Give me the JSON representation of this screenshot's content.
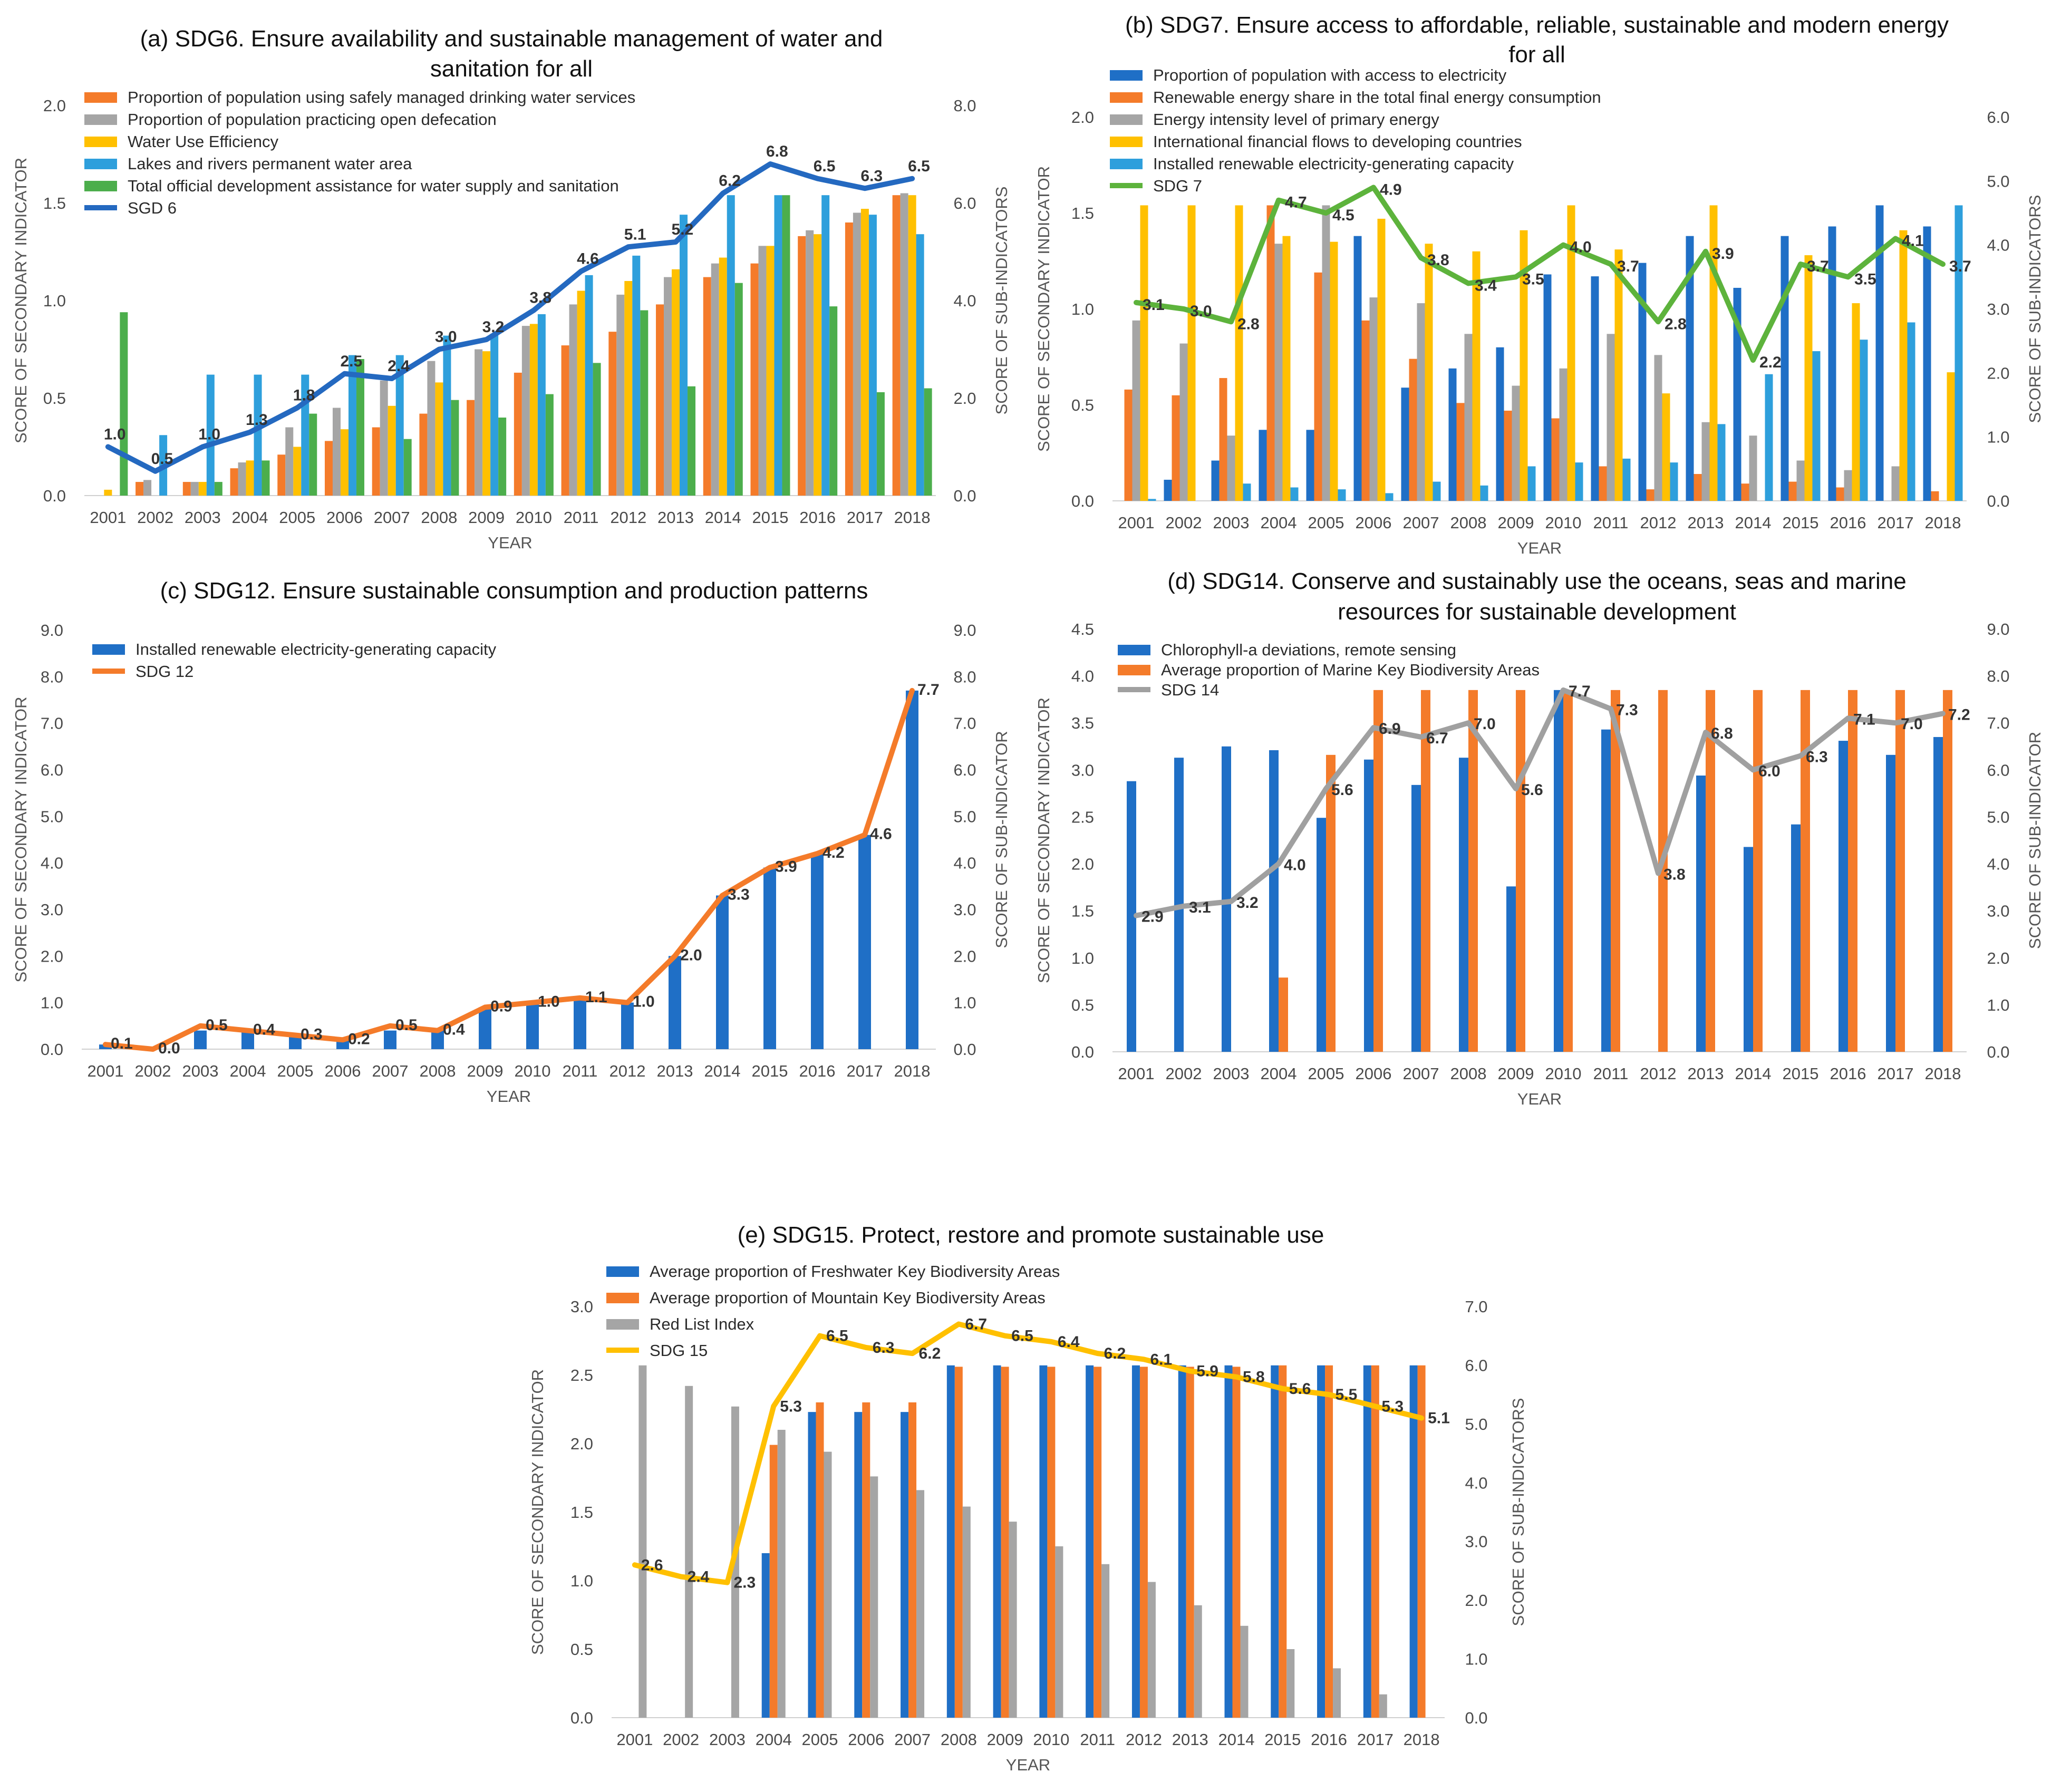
{
  "colors": {
    "blue": "#1f6fc6",
    "orange": "#f47b2a",
    "gray": "#a5a5a5",
    "yellow": "#ffc000",
    "lightblue": "#2e9fdc",
    "green": "#4cae4c",
    "sdg6_line": "#2469c0",
    "sdg7_line": "#5db33c",
    "sdg12_line": "#f47b2a",
    "sdg14_line": "#a0a0a0",
    "sdg15_line": "#ffc000"
  },
  "chart_data": [
    {
      "id": "a",
      "type": "bar",
      "title": "(a) SDG6. Ensure availability and sustainable management of water and sanitation for all",
      "title_lines": [
        "(a) SDG6. Ensure availability and sustainable management of water and",
        "sanitation for all"
      ],
      "xlabel": "YEAR",
      "ylabel": "SCORE OF SECONDARY INDICATOR",
      "y2label": "SCORE OF SUB-INDICATORS",
      "categories": [
        "2001",
        "2002",
        "2003",
        "2004",
        "2005",
        "2006",
        "2007",
        "2008",
        "2009",
        "2010",
        "2011",
        "2012",
        "2013",
        "2014",
        "2015",
        "2016",
        "2017",
        "2018"
      ],
      "ylim": [
        0,
        2.0
      ],
      "yticks": [
        0.0,
        0.5,
        1.0,
        1.5,
        2.0
      ],
      "ytick_labels": [
        "0.0",
        "0.5",
        "1.0",
        "1.5",
        "2.0"
      ],
      "y2lim": [
        0,
        8.0
      ],
      "y2ticks": [
        0.0,
        2.0,
        4.0,
        6.0,
        8.0
      ],
      "y2tick_labels": [
        "0.0",
        "2.0",
        "4.0",
        "6.0",
        "8.0"
      ],
      "series": [
        {
          "name": "Proportion of population using safely managed drinking water services",
          "color": "orange",
          "values": [
            0,
            0.07,
            0.07,
            0.14,
            0.21,
            0.28,
            0.35,
            0.42,
            0.49,
            0.63,
            0.77,
            0.84,
            0.98,
            1.12,
            1.19,
            1.33,
            1.4,
            1.54
          ]
        },
        {
          "name": "Proportion of population practicing open defecation",
          "color": "gray",
          "values": [
            0,
            0.08,
            0.07,
            0.17,
            0.35,
            0.45,
            0.59,
            0.69,
            0.75,
            0.87,
            0.98,
            1.03,
            1.12,
            1.19,
            1.28,
            1.36,
            1.45,
            1.55
          ]
        },
        {
          "name": "Water Use Efficiency",
          "color": "yellow",
          "values": [
            0.03,
            0,
            0.07,
            0.18,
            0.25,
            0.34,
            0.46,
            0.58,
            0.74,
            0.88,
            1.05,
            1.1,
            1.16,
            1.22,
            1.28,
            1.34,
            1.47,
            1.54
          ]
        },
        {
          "name": "Lakes and rivers permanent water area",
          "color": "lightblue",
          "values": [
            0,
            0.31,
            0.62,
            0.62,
            0.62,
            0.72,
            0.72,
            0.82,
            0.83,
            0.93,
            1.13,
            1.23,
            1.44,
            1.54,
            1.54,
            1.54,
            1.44,
            1.34
          ]
        },
        {
          "name": "Total official development assistance for water supply and sanitation",
          "color": "green",
          "values": [
            0.94,
            0,
            0.07,
            0.18,
            0.42,
            0.7,
            0.29,
            0.49,
            0.4,
            0.52,
            0.68,
            0.95,
            0.56,
            1.09,
            1.54,
            0.97,
            0.53,
            0.55
          ]
        }
      ],
      "line": {
        "name": "SGD 6",
        "color": "sdg6_line",
        "values": [
          1.0,
          0.5,
          1.0,
          1.3,
          1.8,
          2.5,
          2.4,
          3.0,
          3.2,
          3.8,
          4.6,
          5.1,
          5.2,
          6.2,
          6.8,
          6.5,
          6.3,
          6.5
        ],
        "labels": [
          "1.0",
          "0.5",
          "1.0",
          "1.3",
          "1.8",
          "2.5",
          "2.4",
          "3.0",
          "3.2",
          "3.8",
          "4.6",
          "5.1",
          "5.2",
          "6.2",
          "6.8",
          "6.5",
          "6.3",
          "6.5"
        ]
      }
    },
    {
      "id": "b",
      "type": "bar",
      "title": "(b) SDG7. Ensure access to affordable, reliable, sustainable and modern energy for all",
      "title_lines": [
        "(b) SDG7. Ensure access to affordable, reliable, sustainable and modern energy",
        "for all"
      ],
      "xlabel": "YEAR",
      "ylabel": "SCORE OF SECONDARY INDICATOR",
      "y2label": "SCORE OF SUB-INDICATORS",
      "categories": [
        "2001",
        "2002",
        "2003",
        "2004",
        "2005",
        "2006",
        "2007",
        "2008",
        "2009",
        "2010",
        "2011",
        "2012",
        "2013",
        "2014",
        "2015",
        "2016",
        "2017",
        "2018"
      ],
      "ylim": [
        0,
        2.0
      ],
      "yticks": [
        0.0,
        0.5,
        1.0,
        1.5,
        2.0
      ],
      "ytick_labels": [
        "0.0",
        "0.5",
        "1.0",
        "1.5",
        "2.0"
      ],
      "y2lim": [
        0,
        6.0
      ],
      "y2ticks": [
        0.0,
        1.0,
        2.0,
        3.0,
        4.0,
        5.0,
        6.0
      ],
      "y2tick_labels": [
        "0.0",
        "1.0",
        "2.0",
        "3.0",
        "4.0",
        "5.0",
        "6.0"
      ],
      "series": [
        {
          "name": "Proportion of population with access to electricity",
          "color": "blue",
          "values": [
            0,
            0.11,
            0.21,
            0.37,
            0.37,
            1.38,
            0.59,
            0.69,
            0.8,
            1.18,
            1.17,
            1.24,
            1.38,
            1.11,
            1.38,
            1.43,
            1.54,
            1.43
          ]
        },
        {
          "name": "Renewable energy share in the total final energy consumption",
          "color": "orange",
          "values": [
            0.58,
            0.55,
            0.64,
            1.54,
            1.19,
            0.94,
            0.74,
            0.51,
            0.47,
            0.43,
            0.18,
            0.06,
            0.14,
            0.09,
            0.1,
            0.07,
            0,
            0.05
          ]
        },
        {
          "name": "Energy intensity level of primary energy",
          "color": "gray",
          "values": [
            0.94,
            0.82,
            0.34,
            1.34,
            1.54,
            1.06,
            1.03,
            0.87,
            0.6,
            0.69,
            0.87,
            0.76,
            0.41,
            0.34,
            0.21,
            0.16,
            0.18,
            0
          ]
        },
        {
          "name": "International financial flows to developing countries",
          "color": "yellow",
          "values": [
            1.54,
            1.54,
            1.54,
            1.38,
            1.35,
            1.47,
            1.34,
            1.3,
            1.41,
            1.54,
            1.31,
            0.56,
            1.54,
            0,
            1.28,
            1.03,
            1.41,
            0.67
          ]
        },
        {
          "name": "Installed renewable electricity-generating capacity",
          "color": "lightblue",
          "values": [
            0.01,
            0,
            0.09,
            0.07,
            0.06,
            0.04,
            0.1,
            0.08,
            0.18,
            0.2,
            0.22,
            0.2,
            0.4,
            0.66,
            0.78,
            0.84,
            0.93,
            1.54
          ]
        }
      ],
      "line": {
        "name": "SDG 7",
        "color": "sdg7_line",
        "values": [
          3.1,
          3.0,
          2.8,
          4.7,
          4.5,
          4.9,
          3.8,
          3.4,
          3.5,
          4.0,
          3.7,
          2.8,
          3.9,
          2.2,
          3.7,
          3.5,
          4.1,
          3.7
        ],
        "labels": [
          "3.1",
          "3.0",
          "2.8",
          "4.7",
          "4.5",
          "4.9",
          "3.8",
          "3.4",
          "3.5",
          "4.0",
          "3.7",
          "2.8",
          "3.9",
          "2.2",
          "3.7",
          "3.5",
          "4.1",
          "3.7"
        ]
      }
    },
    {
      "id": "c",
      "type": "bar",
      "title": "(c) SDG12. Ensure sustainable consumption and production patterns",
      "title_lines": [
        "(c) SDG12. Ensure sustainable consumption and production patterns"
      ],
      "xlabel": "YEAR",
      "ylabel": "SCORE OF SECONDARY INDICATOR",
      "y2label": "SCORE OF SUB-INDICATOR",
      "categories": [
        "2001",
        "2002",
        "2003",
        "2004",
        "2005",
        "2006",
        "2007",
        "2008",
        "2009",
        "2010",
        "2011",
        "2012",
        "2013",
        "2014",
        "2015",
        "2016",
        "2017",
        "2018"
      ],
      "ylim": [
        0,
        9.0
      ],
      "yticks": [
        0.0,
        1.0,
        2.0,
        3.0,
        4.0,
        5.0,
        6.0,
        7.0,
        8.0,
        9.0
      ],
      "ytick_labels": [
        "0.0",
        "1.0",
        "2.0",
        "3.0",
        "4.0",
        "5.0",
        "6.0",
        "7.0",
        "8.0",
        "9.0"
      ],
      "y2lim": [
        0,
        9.0
      ],
      "y2ticks": [
        0.0,
        1.0,
        2.0,
        3.0,
        4.0,
        5.0,
        6.0,
        7.0,
        8.0,
        9.0
      ],
      "y2tick_labels": [
        "0.0",
        "1.0",
        "2.0",
        "3.0",
        "4.0",
        "5.0",
        "6.0",
        "7.0",
        "8.0",
        "9.0"
      ],
      "series": [
        {
          "name": "Installed renewable electricity-generating capacity",
          "color": "blue",
          "values": [
            0.1,
            0.0,
            0.4,
            0.4,
            0.3,
            0.2,
            0.4,
            0.4,
            0.9,
            1.0,
            1.1,
            1.0,
            2.0,
            3.3,
            3.9,
            4.2,
            4.6,
            7.7
          ]
        }
      ],
      "line": {
        "name": "SDG 12",
        "color": "sdg12_line",
        "values": [
          0.1,
          0.0,
          0.5,
          0.4,
          0.3,
          0.2,
          0.5,
          0.4,
          0.9,
          1.0,
          1.1,
          1.0,
          2.0,
          3.3,
          3.9,
          4.2,
          4.6,
          7.7
        ],
        "labels": [
          "0.1",
          "0.0",
          "0.5",
          "0.4",
          "0.3",
          "0.2",
          "0.5",
          "0.4",
          "0.9",
          "1.0",
          "1.1",
          "1.0",
          "2.0",
          "3.3",
          "3.9",
          "4.2",
          "4.6",
          "7.7"
        ],
        "display_labels": [
          "0.1",
          "0.0",
          "0.5",
          "0.4",
          "0.3",
          "0.2",
          "0.5",
          "0.4",
          "0.9",
          "1.0",
          "1.1",
          "1.0",
          "2.0",
          "3.3",
          "3.9",
          "4.2",
          "4.6",
          "7.7"
        ]
      }
    },
    {
      "id": "d",
      "type": "bar",
      "title": "(d) SDG14. Conserve and sustainably use the oceans, seas and marine resources for sustainable development",
      "title_lines": [
        "(d) SDG14. Conserve and sustainably use the oceans, seas and marine",
        "resources for sustainable development"
      ],
      "xlabel": "YEAR",
      "ylabel": "SCORE OF SECONDARY INDICATOR",
      "y2label": "SCORE OF SUB-INDICATOR",
      "categories": [
        "2001",
        "2002",
        "2003",
        "2004",
        "2005",
        "2006",
        "2007",
        "2008",
        "2009",
        "2010",
        "2011",
        "2012",
        "2013",
        "2014",
        "2015",
        "2016",
        "2017",
        "2018"
      ],
      "ylim": [
        0,
        4.5
      ],
      "yticks": [
        0.0,
        0.5,
        1.0,
        1.5,
        2.0,
        2.5,
        3.0,
        3.5,
        4.0,
        4.5
      ],
      "ytick_labels": [
        "0.0",
        "0.5",
        "1.0",
        "1.5",
        "2.0",
        "2.5",
        "3.0",
        "3.5",
        "4.0",
        "4.5"
      ],
      "y2lim": [
        0,
        9.0
      ],
      "y2ticks": [
        0.0,
        1.0,
        2.0,
        3.0,
        4.0,
        5.0,
        6.0,
        7.0,
        8.0,
        9.0
      ],
      "y2tick_labels": [
        "0.0",
        "1.0",
        "2.0",
        "3.0",
        "4.0",
        "5.0",
        "6.0",
        "7.0",
        "8.0",
        "9.0"
      ],
      "series": [
        {
          "name": "Chlorophyll-a deviations, remote sensing",
          "color": "blue",
          "values": [
            2.88,
            3.13,
            3.25,
            3.21,
            2.49,
            3.11,
            2.84,
            3.13,
            1.76,
            3.85,
            3.43,
            0,
            2.94,
            2.18,
            2.42,
            3.31,
            3.16,
            3.35
          ]
        },
        {
          "name": "Average proportion of Marine Key Biodiversity Areas",
          "color": "orange",
          "values": [
            0,
            0,
            0,
            0.79,
            3.16,
            3.85,
            3.85,
            3.85,
            3.85,
            3.85,
            3.85,
            3.85,
            3.85,
            3.85,
            3.85,
            3.85,
            3.85,
            3.85
          ]
        }
      ],
      "line": {
        "name": "SDG 14",
        "color": "sdg14_line",
        "values": [
          2.9,
          3.1,
          3.2,
          4.0,
          5.6,
          6.9,
          6.7,
          7.0,
          5.6,
          7.7,
          7.3,
          3.8,
          6.8,
          6.0,
          6.3,
          7.1,
          7.0,
          7.2
        ],
        "labels": [
          "2.9",
          "3.1",
          "3.2",
          "4.0",
          "5.6",
          "6.9",
          "6.7",
          "7.0",
          "5.6",
          "7.7",
          "7.3",
          "3.8",
          "6.8",
          "6.0",
          "6.3",
          "7.1",
          "7.0",
          "7.2"
        ]
      }
    },
    {
      "id": "e",
      "type": "bar",
      "title": "(e) SDG15. Protect, restore and promote sustainable use",
      "title_lines": [
        "(e) SDG15. Protect, restore and promote sustainable use"
      ],
      "xlabel": "YEAR",
      "ylabel": "SCORE OF SECONDARY INDICATOR",
      "y2label": "SCORE OF SUB-INDICATORS",
      "categories": [
        "2001",
        "2002",
        "2003",
        "2004",
        "2005",
        "2006",
        "2007",
        "2008",
        "2009",
        "2010",
        "2011",
        "2012",
        "2013",
        "2014",
        "2015",
        "2016",
        "2017",
        "2018"
      ],
      "ylim": [
        0,
        3.0
      ],
      "yticks": [
        0.0,
        0.5,
        1.0,
        1.5,
        2.0,
        2.5,
        3.0
      ],
      "ytick_labels": [
        "0.0",
        "0.5",
        "1.0",
        "1.5",
        "2.0",
        "2.5",
        "3.0"
      ],
      "y2lim": [
        0,
        7.0
      ],
      "y2ticks": [
        0.0,
        1.0,
        2.0,
        3.0,
        4.0,
        5.0,
        6.0,
        7.0
      ],
      "y2tick_labels": [
        "0.0",
        "1.0",
        "2.0",
        "3.0",
        "4.0",
        "5.0",
        "6.0",
        "7.0"
      ],
      "series": [
        {
          "name": "Average proportion of Freshwater Key Biodiversity Areas",
          "color": "blue",
          "values": [
            0,
            0,
            0,
            1.2,
            2.23,
            2.23,
            2.23,
            2.57,
            2.57,
            2.57,
            2.57,
            2.57,
            2.57,
            2.57,
            2.57,
            2.57,
            2.57,
            2.57
          ]
        },
        {
          "name": "Average proportion of Mountain Key Biodiversity Areas",
          "color": "orange",
          "values": [
            0,
            0,
            0,
            1.99,
            2.3,
            2.3,
            2.3,
            2.56,
            2.56,
            2.56,
            2.56,
            2.56,
            2.56,
            2.56,
            2.57,
            2.57,
            2.57,
            2.57
          ]
        },
        {
          "name": "Red List Index",
          "color": "gray",
          "values": [
            2.57,
            2.42,
            2.27,
            2.1,
            1.94,
            1.76,
            1.66,
            1.54,
            1.43,
            1.25,
            1.12,
            0.99,
            0.82,
            0.67,
            0.5,
            0.36,
            0.17,
            0
          ]
        }
      ],
      "line": {
        "name": "SDG 15",
        "color": "sdg15_line",
        "values": [
          2.6,
          2.4,
          2.3,
          5.3,
          6.5,
          6.3,
          6.2,
          6.7,
          6.5,
          6.4,
          6.2,
          6.1,
          5.9,
          5.8,
          5.6,
          5.5,
          5.3,
          5.1
        ],
        "labels": [
          "2.6",
          "2.4",
          "2.3",
          "5.3",
          "6.5",
          "6.3",
          "6.2",
          "6.7",
          "6.5",
          "6.4",
          "6.2",
          "6.1",
          "5.9",
          "5.8",
          "5.6",
          "5.5",
          "5.3",
          "5.1"
        ]
      }
    }
  ]
}
